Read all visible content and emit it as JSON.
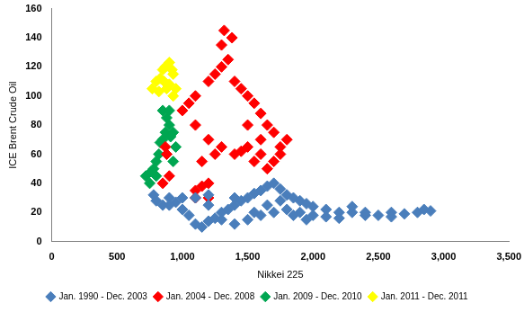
{
  "chart_data": {
    "type": "scatter",
    "x_label": "Nikkei 225",
    "y_label": "ICE Brent Crude Oil",
    "xlim": [
      0,
      3500
    ],
    "xticks": [
      0,
      500,
      1000,
      1500,
      2000,
      2500,
      3000,
      3500
    ],
    "ylim": [
      0,
      160
    ],
    "yticks": [
      0,
      20,
      40,
      60,
      80,
      100,
      120,
      140,
      160
    ],
    "grid": false,
    "legend": "bottom",
    "marker": "diamond",
    "series": [
      {
        "name": "Jan. 1990 - Dec. 2003",
        "color": "#4a7ebb",
        "x": [
          780,
          800,
          850,
          900,
          950,
          1000,
          1050,
          1100,
          1150,
          1200,
          1250,
          1300,
          1350,
          1400,
          1450,
          1500,
          1550,
          1600,
          1650,
          1700,
          1750,
          1800,
          1850,
          1900,
          1950,
          2000,
          2100,
          2200,
          2300,
          2400,
          2500,
          2600,
          2700,
          2800,
          2900,
          1100,
          1200,
          1300,
          1400,
          1500,
          1600,
          1700,
          1800,
          2000,
          2200,
          2400,
          1000,
          900,
          1200,
          1400,
          1550,
          1650,
          1750,
          1900,
          2100,
          2300,
          2600,
          2850,
          1850,
          1950
        ],
        "values": [
          32,
          28,
          25,
          30,
          27,
          22,
          18,
          12,
          10,
          14,
          16,
          20,
          22,
          25,
          28,
          30,
          33,
          35,
          38,
          40,
          36,
          32,
          30,
          28,
          26,
          24,
          22,
          20,
          20,
          18,
          18,
          20,
          19,
          20,
          21,
          30,
          25,
          15,
          12,
          15,
          18,
          20,
          22,
          18,
          16,
          20,
          30,
          25,
          32,
          30,
          20,
          25,
          28,
          20,
          17,
          24,
          17,
          22,
          18,
          15
        ]
      },
      {
        "name": "Jan. 2004 - Dec. 2008",
        "color": "#ff0000",
        "x": [
          1100,
          1150,
          1200,
          1150,
          1250,
          1300,
          1200,
          1100,
          1000,
          1050,
          1100,
          1200,
          1250,
          1300,
          1300,
          1320,
          1380,
          1350,
          1400,
          1450,
          1500,
          1550,
          1600,
          1500,
          1400,
          1450,
          1500,
          1600,
          1700,
          1800,
          1750,
          1700,
          1650,
          1600,
          1550,
          1650,
          1750,
          850,
          880,
          870,
          900,
          1100,
          1200
        ],
        "values": [
          35,
          38,
          40,
          55,
          60,
          65,
          70,
          80,
          90,
          95,
          100,
          110,
          115,
          120,
          135,
          145,
          140,
          125,
          110,
          105,
          100,
          95,
          88,
          80,
          60,
          62,
          65,
          70,
          75,
          70,
          60,
          55,
          50,
          60,
          55,
          80,
          65,
          40,
          60,
          65,
          45,
          30,
          30
        ]
      },
      {
        "name": "Jan. 2009 - Dec. 2010",
        "color": "#00a651",
        "x": [
          720,
          750,
          780,
          800,
          820,
          850,
          870,
          900,
          880,
          850,
          900,
          930,
          950,
          930,
          880,
          800,
          760,
          830,
          910
        ],
        "values": [
          45,
          40,
          50,
          55,
          60,
          70,
          75,
          80,
          85,
          90,
          90,
          75,
          65,
          55,
          60,
          45,
          48,
          68,
          72
        ]
      },
      {
        "name": "Jan. 2011 - Dec. 2011",
        "color": "#ffff00",
        "x": [
          770,
          800,
          830,
          850,
          870,
          900,
          920,
          930,
          900,
          880,
          930,
          950,
          820,
          860
        ],
        "values": [
          105,
          110,
          112,
          118,
          120,
          123,
          118,
          115,
          108,
          105,
          100,
          105,
          103,
          110
        ]
      }
    ]
  }
}
